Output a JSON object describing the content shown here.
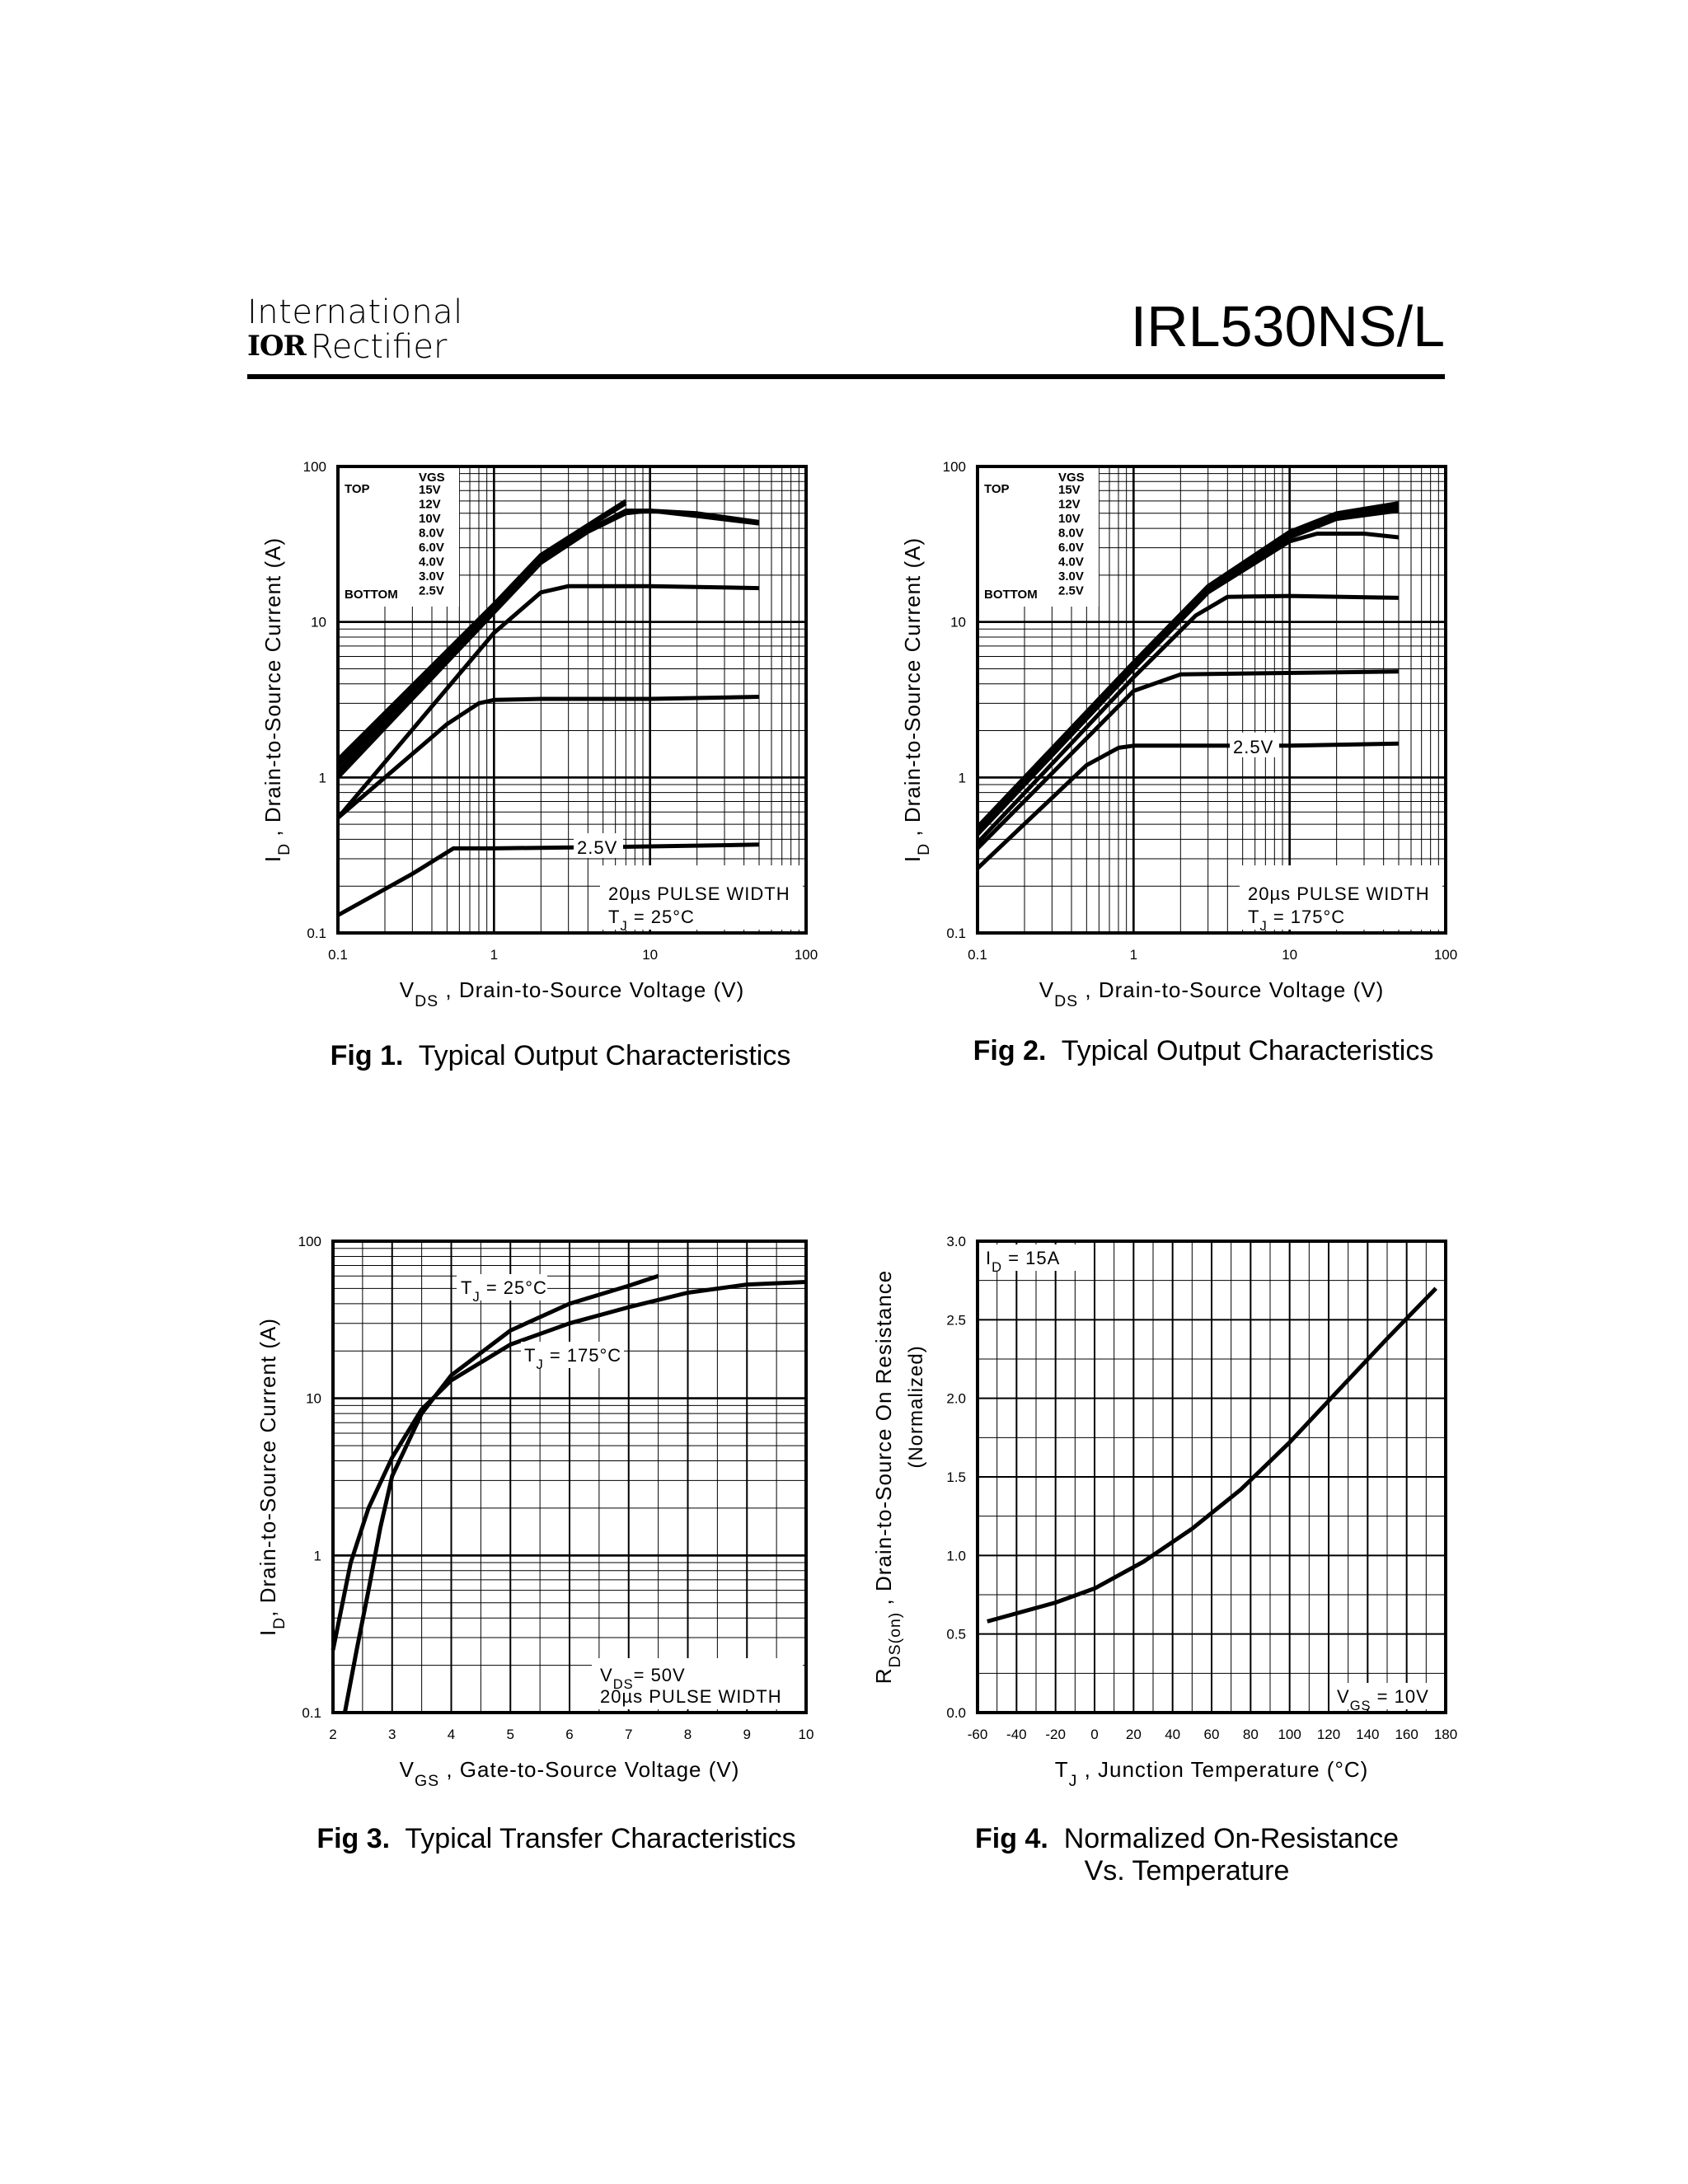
{
  "header": {
    "brand_top": "International",
    "brand_logo": "IOR",
    "brand_bottom": "Rectifier",
    "part_number": "IRL530NS/L"
  },
  "captions": [
    {
      "num": "Fig 1.",
      "text": "Typical Output Characteristics",
      "text2": ""
    },
    {
      "num": "Fig 2.",
      "text": "Typical Output Characteristics",
      "text2": ""
    },
    {
      "num": "Fig 3.",
      "text": "Typical Transfer Characteristics",
      "text2": ""
    },
    {
      "num": "Fig 4.",
      "text": "Normalized On-Resistance",
      "text2": "Vs. Temperature"
    }
  ],
  "chart_data": [
    {
      "type": "line",
      "xscale": "log",
      "yscale": "log",
      "xlim": [
        0.1,
        100
      ],
      "ylim": [
        0.1,
        100
      ],
      "xticks": [
        "0.1",
        "1",
        "10",
        "100"
      ],
      "yticks": [
        "0.1",
        "1",
        "10",
        "100"
      ],
      "xlabel": {
        "main": "V",
        "sub": "DS",
        "rest": " , Drain-to-Source Voltage (V)"
      },
      "ylabel": {
        "main": "I",
        "sub": "D",
        "rest": " , Drain-to-Source Current (A)"
      },
      "legend": {
        "head": "VGS",
        "top_word": "TOP",
        "bottom_word": "BOTTOM",
        "entries": [
          "15V",
          "12V",
          "10V",
          "8.0V",
          "6.0V",
          "4.0V",
          "3.0V",
          "2.5V"
        ]
      },
      "annotations": {
        "curve_label": "2.5V",
        "pulse": "20µs PULSE WIDTH",
        "tj_main": "T",
        "tj_sub": "J",
        "tj_rest": " = 25°C"
      },
      "series": [
        {
          "values": [
            [
              0.1,
              1.3
            ],
            [
              1,
              13
            ],
            [
              2,
              27
            ],
            [
              4,
              42
            ],
            [
              7,
              60
            ]
          ]
        },
        {
          "values": [
            [
              0.1,
              1.2
            ],
            [
              1,
              12.5
            ],
            [
              2,
              26
            ],
            [
              4,
              41
            ],
            [
              7,
              58
            ]
          ]
        },
        {
          "values": [
            [
              0.1,
              1.1
            ],
            [
              1,
              12
            ],
            [
              2,
              25
            ],
            [
              4,
              39
            ],
            [
              7,
              52
            ],
            [
              10,
              52
            ],
            [
              20,
              48
            ],
            [
              50,
              43
            ]
          ]
        },
        {
          "values": [
            [
              0.1,
              1.0
            ],
            [
              1,
              11.5
            ],
            [
              2,
              24
            ],
            [
              4,
              38
            ],
            [
              7,
              50
            ],
            [
              10,
              52
            ],
            [
              20,
              50
            ],
            [
              50,
              44
            ]
          ]
        },
        {
          "values": [
            [
              0.1,
              1.05
            ],
            [
              1,
              11.8
            ],
            [
              2,
              24.5
            ],
            [
              4,
              38.5
            ],
            [
              7,
              51
            ],
            [
              10,
              52
            ],
            [
              20,
              49
            ],
            [
              50,
              43
            ]
          ]
        },
        {
          "values": [
            [
              0.1,
              0.55
            ],
            [
              1,
              8.5
            ],
            [
              2,
              15.5
            ],
            [
              3,
              17
            ],
            [
              10,
              17
            ],
            [
              50,
              16.5
            ]
          ]
        },
        {
          "values": [
            [
              0.1,
              0.55
            ],
            [
              0.5,
              2.2
            ],
            [
              0.8,
              3.0
            ],
            [
              1,
              3.15
            ],
            [
              2,
              3.2
            ],
            [
              10,
              3.2
            ],
            [
              50,
              3.3
            ]
          ]
        },
        {
          "values": [
            [
              0.1,
              0.13
            ],
            [
              0.3,
              0.24
            ],
            [
              0.55,
              0.35
            ],
            [
              1,
              0.35
            ],
            [
              10,
              0.36
            ],
            [
              50,
              0.37
            ]
          ]
        }
      ]
    },
    {
      "type": "line",
      "xscale": "log",
      "yscale": "log",
      "xlim": [
        0.1,
        100
      ],
      "ylim": [
        0.1,
        100
      ],
      "xticks": [
        "0.1",
        "1",
        "10",
        "100"
      ],
      "yticks": [
        "0.1",
        "1",
        "10",
        "100"
      ],
      "xlabel": {
        "main": "V",
        "sub": "DS",
        "rest": " , Drain-to-Source Voltage (V)"
      },
      "ylabel": {
        "main": "I",
        "sub": "D",
        "rest": " , Drain-to-Source Current (A)"
      },
      "legend": {
        "head": "VGS",
        "top_word": "TOP",
        "bottom_word": "BOTTOM",
        "entries": [
          "15V",
          "12V",
          "10V",
          "8.0V",
          "6.0V",
          "4.0V",
          "3.0V",
          "2.5V"
        ]
      },
      "annotations": {
        "curve_label": "2.5V",
        "pulse": "20µs PULSE WIDTH",
        "tj_main": "T",
        "tj_sub": "J",
        "tj_rest": " = 175°C"
      },
      "series": [
        {
          "values": [
            [
              0.1,
              0.48
            ],
            [
              1,
              5.5
            ],
            [
              3,
              17
            ],
            [
              10,
              38
            ],
            [
              20,
              50
            ],
            [
              50,
              58
            ]
          ]
        },
        {
          "values": [
            [
              0.1,
              0.46
            ],
            [
              1,
              5.3
            ],
            [
              3,
              16.5
            ],
            [
              10,
              37
            ],
            [
              20,
              49
            ],
            [
              50,
              57
            ]
          ]
        },
        {
          "values": [
            [
              0.1,
              0.45
            ],
            [
              1,
              5.2
            ],
            [
              3,
              16
            ],
            [
              10,
              36
            ],
            [
              20,
              48
            ],
            [
              50,
              55
            ]
          ]
        },
        {
          "values": [
            [
              0.1,
              0.44
            ],
            [
              1,
              5.1
            ],
            [
              3,
              16
            ],
            [
              10,
              35
            ],
            [
              20,
              46
            ],
            [
              50,
              52
            ]
          ]
        },
        {
          "values": [
            [
              0.1,
              0.43
            ],
            [
              1,
              5.0
            ],
            [
              3,
              15.5
            ],
            [
              10,
              33
            ],
            [
              15,
              37
            ],
            [
              30,
              37
            ],
            [
              50,
              35
            ]
          ]
        },
        {
          "values": [
            [
              0.1,
              0.38
            ],
            [
              1,
              4.4
            ],
            [
              2.5,
              11
            ],
            [
              4,
              14.5
            ],
            [
              10,
              14.7
            ],
            [
              50,
              14.3
            ]
          ]
        },
        {
          "values": [
            [
              0.1,
              0.35
            ],
            [
              1,
              3.6
            ],
            [
              2,
              4.6
            ],
            [
              10,
              4.7
            ],
            [
              50,
              4.8
            ]
          ]
        },
        {
          "values": [
            [
              0.1,
              0.26
            ],
            [
              0.5,
              1.2
            ],
            [
              0.8,
              1.55
            ],
            [
              1,
              1.6
            ],
            [
              10,
              1.6
            ],
            [
              50,
              1.65
            ]
          ]
        }
      ]
    },
    {
      "type": "line",
      "xscale": "linear",
      "yscale": "log",
      "xlim": [
        2,
        10
      ],
      "ylim": [
        0.1,
        100
      ],
      "xticks": [
        "2",
        "3",
        "4",
        "5",
        "6",
        "7",
        "8",
        "9",
        "10"
      ],
      "yticks": [
        "0.1",
        "1",
        "10",
        "100"
      ],
      "xlabel": {
        "main": "V",
        "sub": "GS",
        "rest": " , Gate-to-Source Voltage (V)"
      },
      "ylabel": {
        "main": "I",
        "sub": "D",
        "rest": ", Drain-to-Source Current (A)"
      },
      "annotations": {
        "vds_main": "V",
        "vds_sub": "DS",
        "vds_rest": "= 50V",
        "pulse": "20µs PULSE WIDTH"
      },
      "series": [
        {
          "name": "T",
          "name_sub": "J",
          "name_rest": " = 25°C",
          "values": [
            [
              2.2,
              0.1
            ],
            [
              2.4,
              0.25
            ],
            [
              2.6,
              0.6
            ],
            [
              2.8,
              1.5
            ],
            [
              3.0,
              3.2
            ],
            [
              3.5,
              8
            ],
            [
              4,
              14
            ],
            [
              5,
              27
            ],
            [
              6,
              40
            ],
            [
              7,
              52
            ],
            [
              7.5,
              60
            ]
          ]
        },
        {
          "name": "T",
          "name_sub": "J",
          "name_rest": " = 175°C",
          "values": [
            [
              2.0,
              0.25
            ],
            [
              2.3,
              0.9
            ],
            [
              2.6,
              2.0
            ],
            [
              3.0,
              4.2
            ],
            [
              3.5,
              8.5
            ],
            [
              4,
              13
            ],
            [
              5,
              22
            ],
            [
              6,
              30
            ],
            [
              7,
              38
            ],
            [
              8,
              47
            ],
            [
              9,
              53
            ],
            [
              10,
              55
            ]
          ]
        }
      ]
    },
    {
      "type": "line",
      "xscale": "linear",
      "yscale": "linear",
      "xlim": [
        -60,
        180
      ],
      "ylim": [
        0.0,
        3.0
      ],
      "xticks": [
        "-60",
        "-40",
        "-20",
        "0",
        "20",
        "40",
        "60",
        "80",
        "100",
        "120",
        "140",
        "160",
        "180"
      ],
      "yticks": [
        "0.0",
        "0.5",
        "1.0",
        "1.5",
        "2.0",
        "2.5",
        "3.0"
      ],
      "xlabel": {
        "main": "T",
        "sub": "J",
        "rest": " , Junction Temperature (°C)"
      },
      "ylabel": {
        "main": "R",
        "sub": "DS(on)",
        "rest": " ,  Drain-to-Source On Resistance",
        "line2": "(Normalized)"
      },
      "annotations": {
        "id_main": "I",
        "id_sub": "D",
        "id_rest": " = 15A",
        "vgs_main": "V",
        "vgs_sub": "GS",
        "vgs_rest": " = 10V"
      },
      "series": [
        {
          "values": [
            [
              -55,
              0.58
            ],
            [
              -20,
              0.7
            ],
            [
              0,
              0.79
            ],
            [
              25,
              0.96
            ],
            [
              50,
              1.17
            ],
            [
              75,
              1.42
            ],
            [
              100,
              1.72
            ],
            [
              125,
              2.05
            ],
            [
              150,
              2.38
            ],
            [
              175,
              2.7
            ]
          ]
        }
      ]
    }
  ]
}
